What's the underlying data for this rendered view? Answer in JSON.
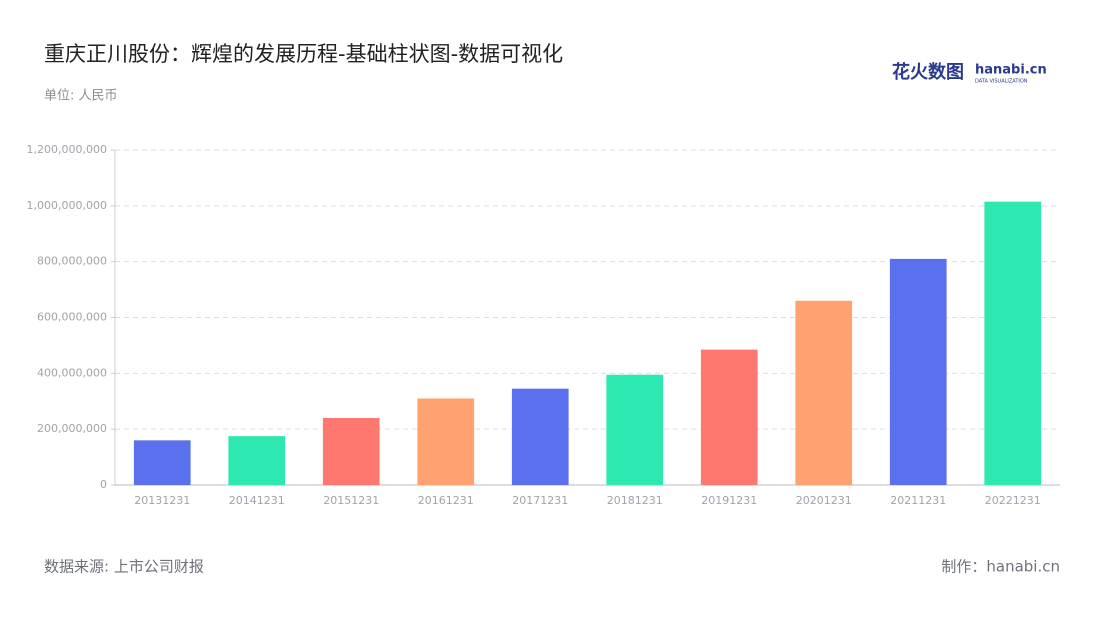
{
  "chart_data": {
    "type": "bar",
    "title": "重庆正川股份：辉煌的发展历程-基础柱状图-数据可视化",
    "subtitle": "单位: 人民币",
    "source": "数据来源: 上市公司财报",
    "credit": "制作：hanabi.cn",
    "logo": "花火数图",
    "logo_sub": "hanabi.cn",
    "logo_tagline": "DATA VISUALIZATION",
    "categories": [
      "20131231",
      "20141231",
      "20151231",
      "20161231",
      "20171231",
      "20181231",
      "20191231",
      "20201231",
      "20211231",
      "20221231"
    ],
    "values": [
      160000000,
      175000000,
      240000000,
      310000000,
      345000000,
      395000000,
      485000000,
      660000000,
      810000000,
      1015000000
    ],
    "colors": [
      "#5a70ef",
      "#2de8b0",
      "#ff7870",
      "#ffa26f",
      "#5a70ef",
      "#2de8b0",
      "#ff7870",
      "#ffa26f",
      "#5a70ef",
      "#2de8b0"
    ],
    "ylim": [
      0,
      1200000000
    ],
    "yticks": [
      0,
      {
        "value": 200000000,
        "label": "200,000,000"
      },
      {
        "value": 400000000,
        "label": "400,000,000"
      },
      {
        "value": 600000000,
        "label": "600,000,000"
      },
      {
        "value": 800000000,
        "label": "800,000,000"
      },
      {
        "value": 1000000000,
        "label": "1,000,000,000"
      },
      {
        "value": 1200000000,
        "label": "1,200,000,000"
      }
    ],
    "grid": true
  }
}
